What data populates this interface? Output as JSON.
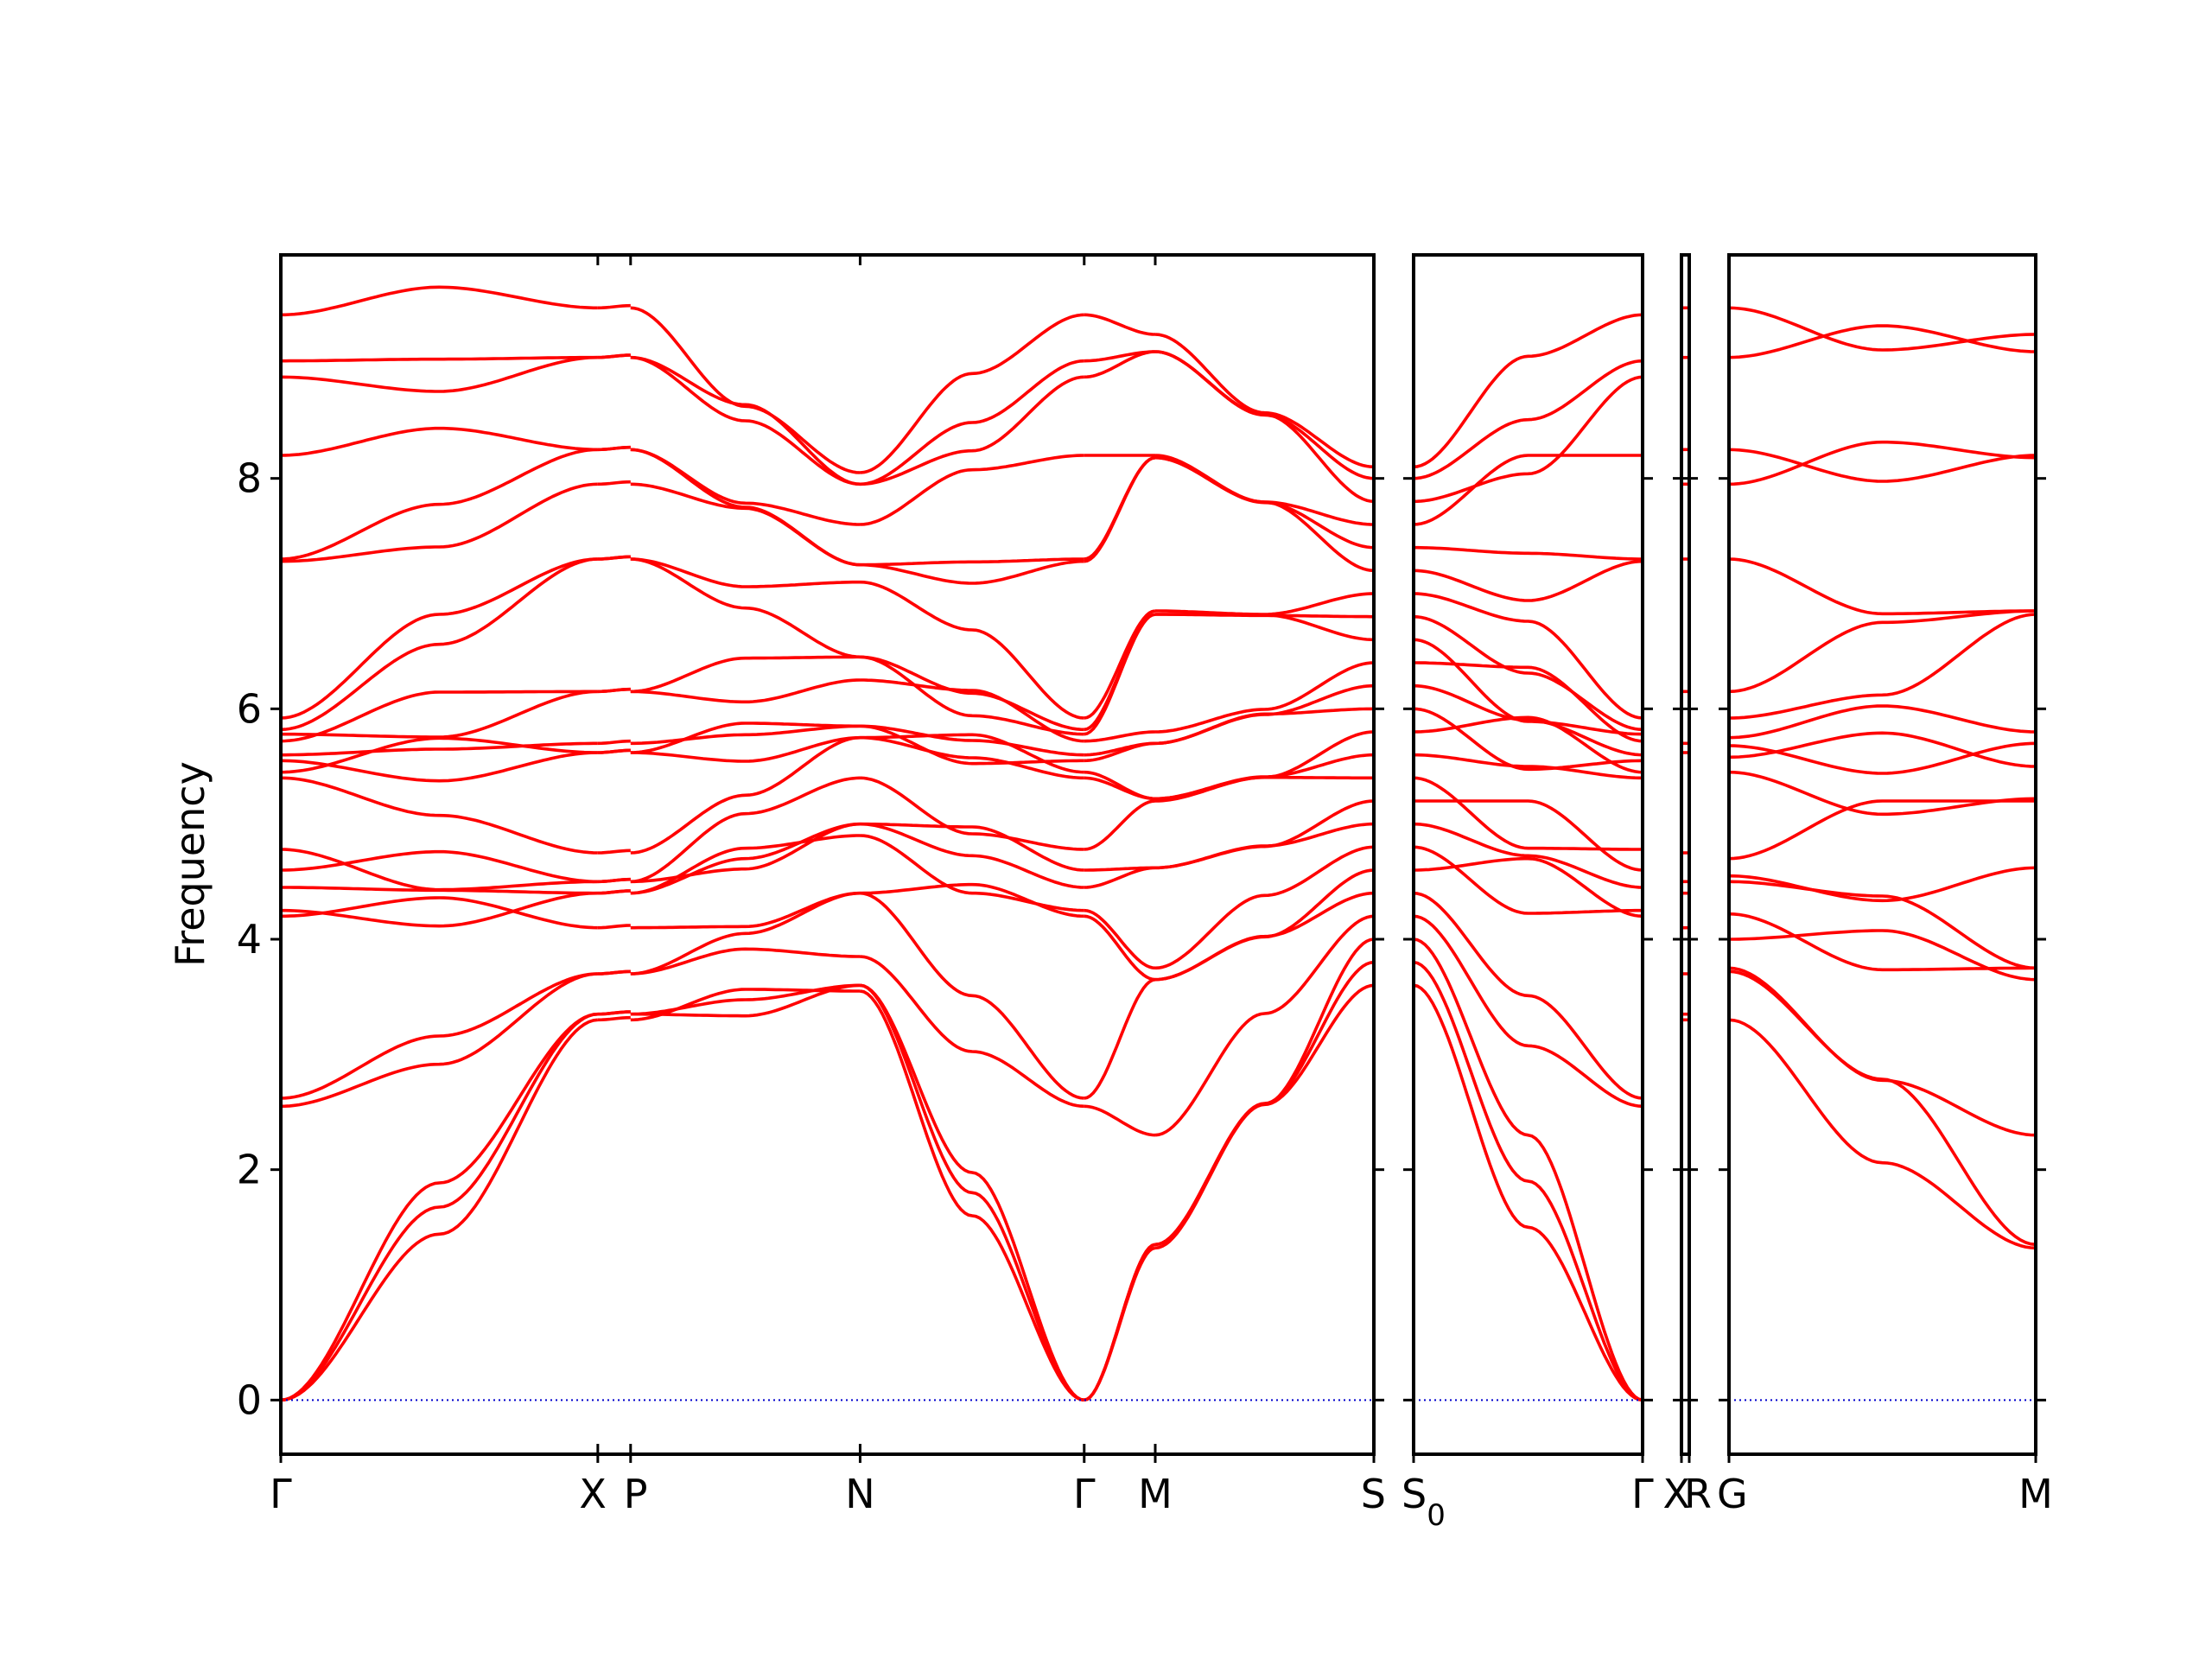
{
  "chart_data": {
    "type": "line",
    "title": "",
    "ylabel": "Frequency",
    "ylim": [
      -0.47,
      9.94
    ],
    "y_ticks": [
      "0",
      "2",
      "4",
      "6",
      "8"
    ],
    "colors": {
      "bands": "#ff0000",
      "zero_line": "#0000cc",
      "frame": "#000000"
    },
    "grid": false,
    "legend": "none",
    "panels": [
      {
        "id": "p1",
        "path": [
          "Γ",
          "X",
          "P",
          "N",
          "Γ",
          "M",
          "S"
        ],
        "x_labels": [
          {
            "text": "Γ",
            "x": 0.0
          },
          {
            "text": "X",
            "x": 0.29
          },
          {
            "text": "P",
            "x": 0.32
          },
          {
            "text": "N",
            "x": 0.53
          },
          {
            "text": "Γ",
            "x": 0.735
          },
          {
            "text": "M",
            "x": 0.8
          },
          {
            "text": "S",
            "x": 1.0
          }
        ],
        "gamma_values": [
          0,
          0,
          0,
          2.55,
          2.62,
          4.2,
          4.25,
          4.45,
          4.6,
          4.78,
          5.4,
          5.45,
          5.55,
          5.6,
          5.72,
          5.78,
          5.82,
          5.92,
          7.28,
          7.3,
          8.2,
          8.88,
          9.02,
          9.42
        ],
        "bands_at_X": [
          3.3,
          3.35,
          3.7,
          4.1,
          4.4,
          4.5,
          4.75,
          5.62,
          5.7,
          6.15,
          7.3,
          7.95,
          8.25,
          9.05,
          9.48
        ],
        "bands_at_N": [
          3.55,
          3.6,
          3.85,
          4.4,
          4.9,
          5.0,
          5.4,
          5.75,
          5.85,
          6.25,
          6.45,
          7.1,
          7.25,
          7.6,
          7.95,
          8.05
        ],
        "bands_at_M": [
          1.32,
          1.35,
          2.3,
          3.65,
          3.75,
          4.62,
          5.2,
          5.22,
          5.7,
          5.8,
          6.82,
          6.85,
          8.18,
          8.2,
          9.1,
          9.25
        ]
      },
      {
        "id": "p2",
        "path": [
          "S0",
          "Γ"
        ],
        "x_labels": [
          {
            "text": "S0",
            "x": 0.0,
            "sub": "0"
          },
          {
            "text": "Γ",
            "x": 1.0
          }
        ]
      },
      {
        "id": "p3",
        "path": [
          "X",
          "R"
        ],
        "x_labels": [
          {
            "text": "X",
            "x": 0.0
          },
          {
            "text": "R",
            "x": 1.0
          }
        ]
      },
      {
        "id": "p4",
        "path": [
          "G",
          "M"
        ],
        "x_labels": [
          {
            "text": "G",
            "x": 0.0
          },
          {
            "text": "M",
            "x": 1.0
          }
        ],
        "bands_at_G": [
          3.3,
          3.72,
          3.75,
          4.0,
          4.22,
          4.5,
          4.55,
          4.7,
          5.45,
          5.58,
          5.68,
          5.75,
          5.92,
          6.15,
          7.3,
          7.95,
          8.25,
          9.05,
          9.48
        ],
        "bands_at_M": [
          1.32,
          1.35,
          2.3,
          3.65,
          3.75,
          4.62,
          5.2,
          5.22,
          5.5,
          5.7,
          5.8,
          6.82,
          6.85,
          8.18,
          8.2,
          9.1,
          9.25
        ]
      }
    ]
  }
}
